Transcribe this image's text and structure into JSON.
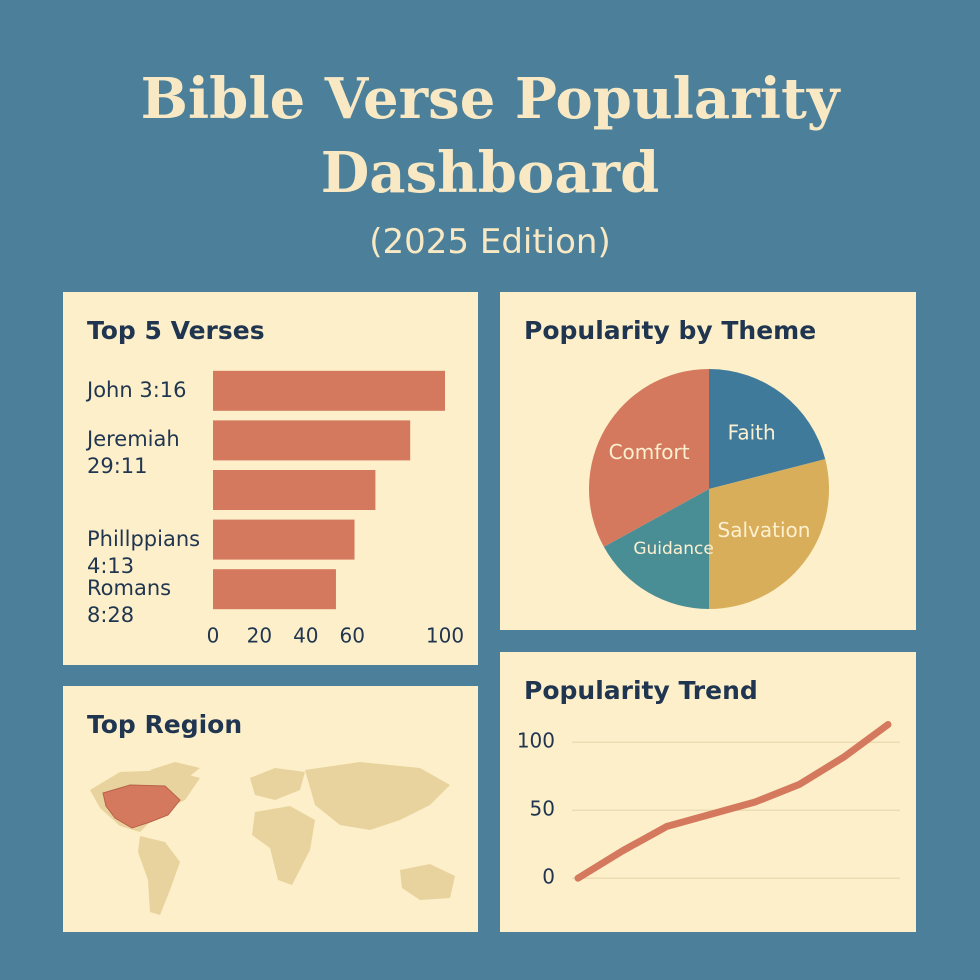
{
  "header": {
    "title": "Bible Verse Popularity Dashboard",
    "subtitle": "(2025 Edition)"
  },
  "chart_data": [
    {
      "type": "bar",
      "title": "Top 5 Verses",
      "orientation": "horizontal",
      "categories": [
        "John 3:16",
        "Jeremiah 29:11",
        null,
        "Phillppians 4:13",
        "Romans 8:28"
      ],
      "values": [
        100,
        85,
        70,
        61,
        53
      ],
      "color": "#d4795e",
      "xlim": [
        0,
        100
      ],
      "xticks": [
        0,
        20,
        40,
        60,
        100
      ]
    },
    {
      "type": "pie",
      "title": "Popularity by Theme",
      "categories": [
        "Faith",
        "Salvation",
        "Guidance",
        "Comfort"
      ],
      "values": [
        21,
        29,
        17,
        33
      ],
      "colors": [
        "#3f7a9a",
        "#d9ae5a",
        "#4a8e95",
        "#d4795e"
      ]
    },
    {
      "type": "map",
      "title": "Top Region"
    },
    {
      "type": "line",
      "title": "Popularity Trend",
      "categories": [
        null,
        null,
        null,
        null,
        null,
        null,
        null,
        null
      ],
      "values": [
        0,
        20,
        38,
        47,
        56,
        69,
        89,
        113
      ],
      "color": "#d4795e",
      "ylim": [
        -5,
        120
      ],
      "yticks": [
        0,
        50,
        100
      ],
      "grid": true
    }
  ]
}
